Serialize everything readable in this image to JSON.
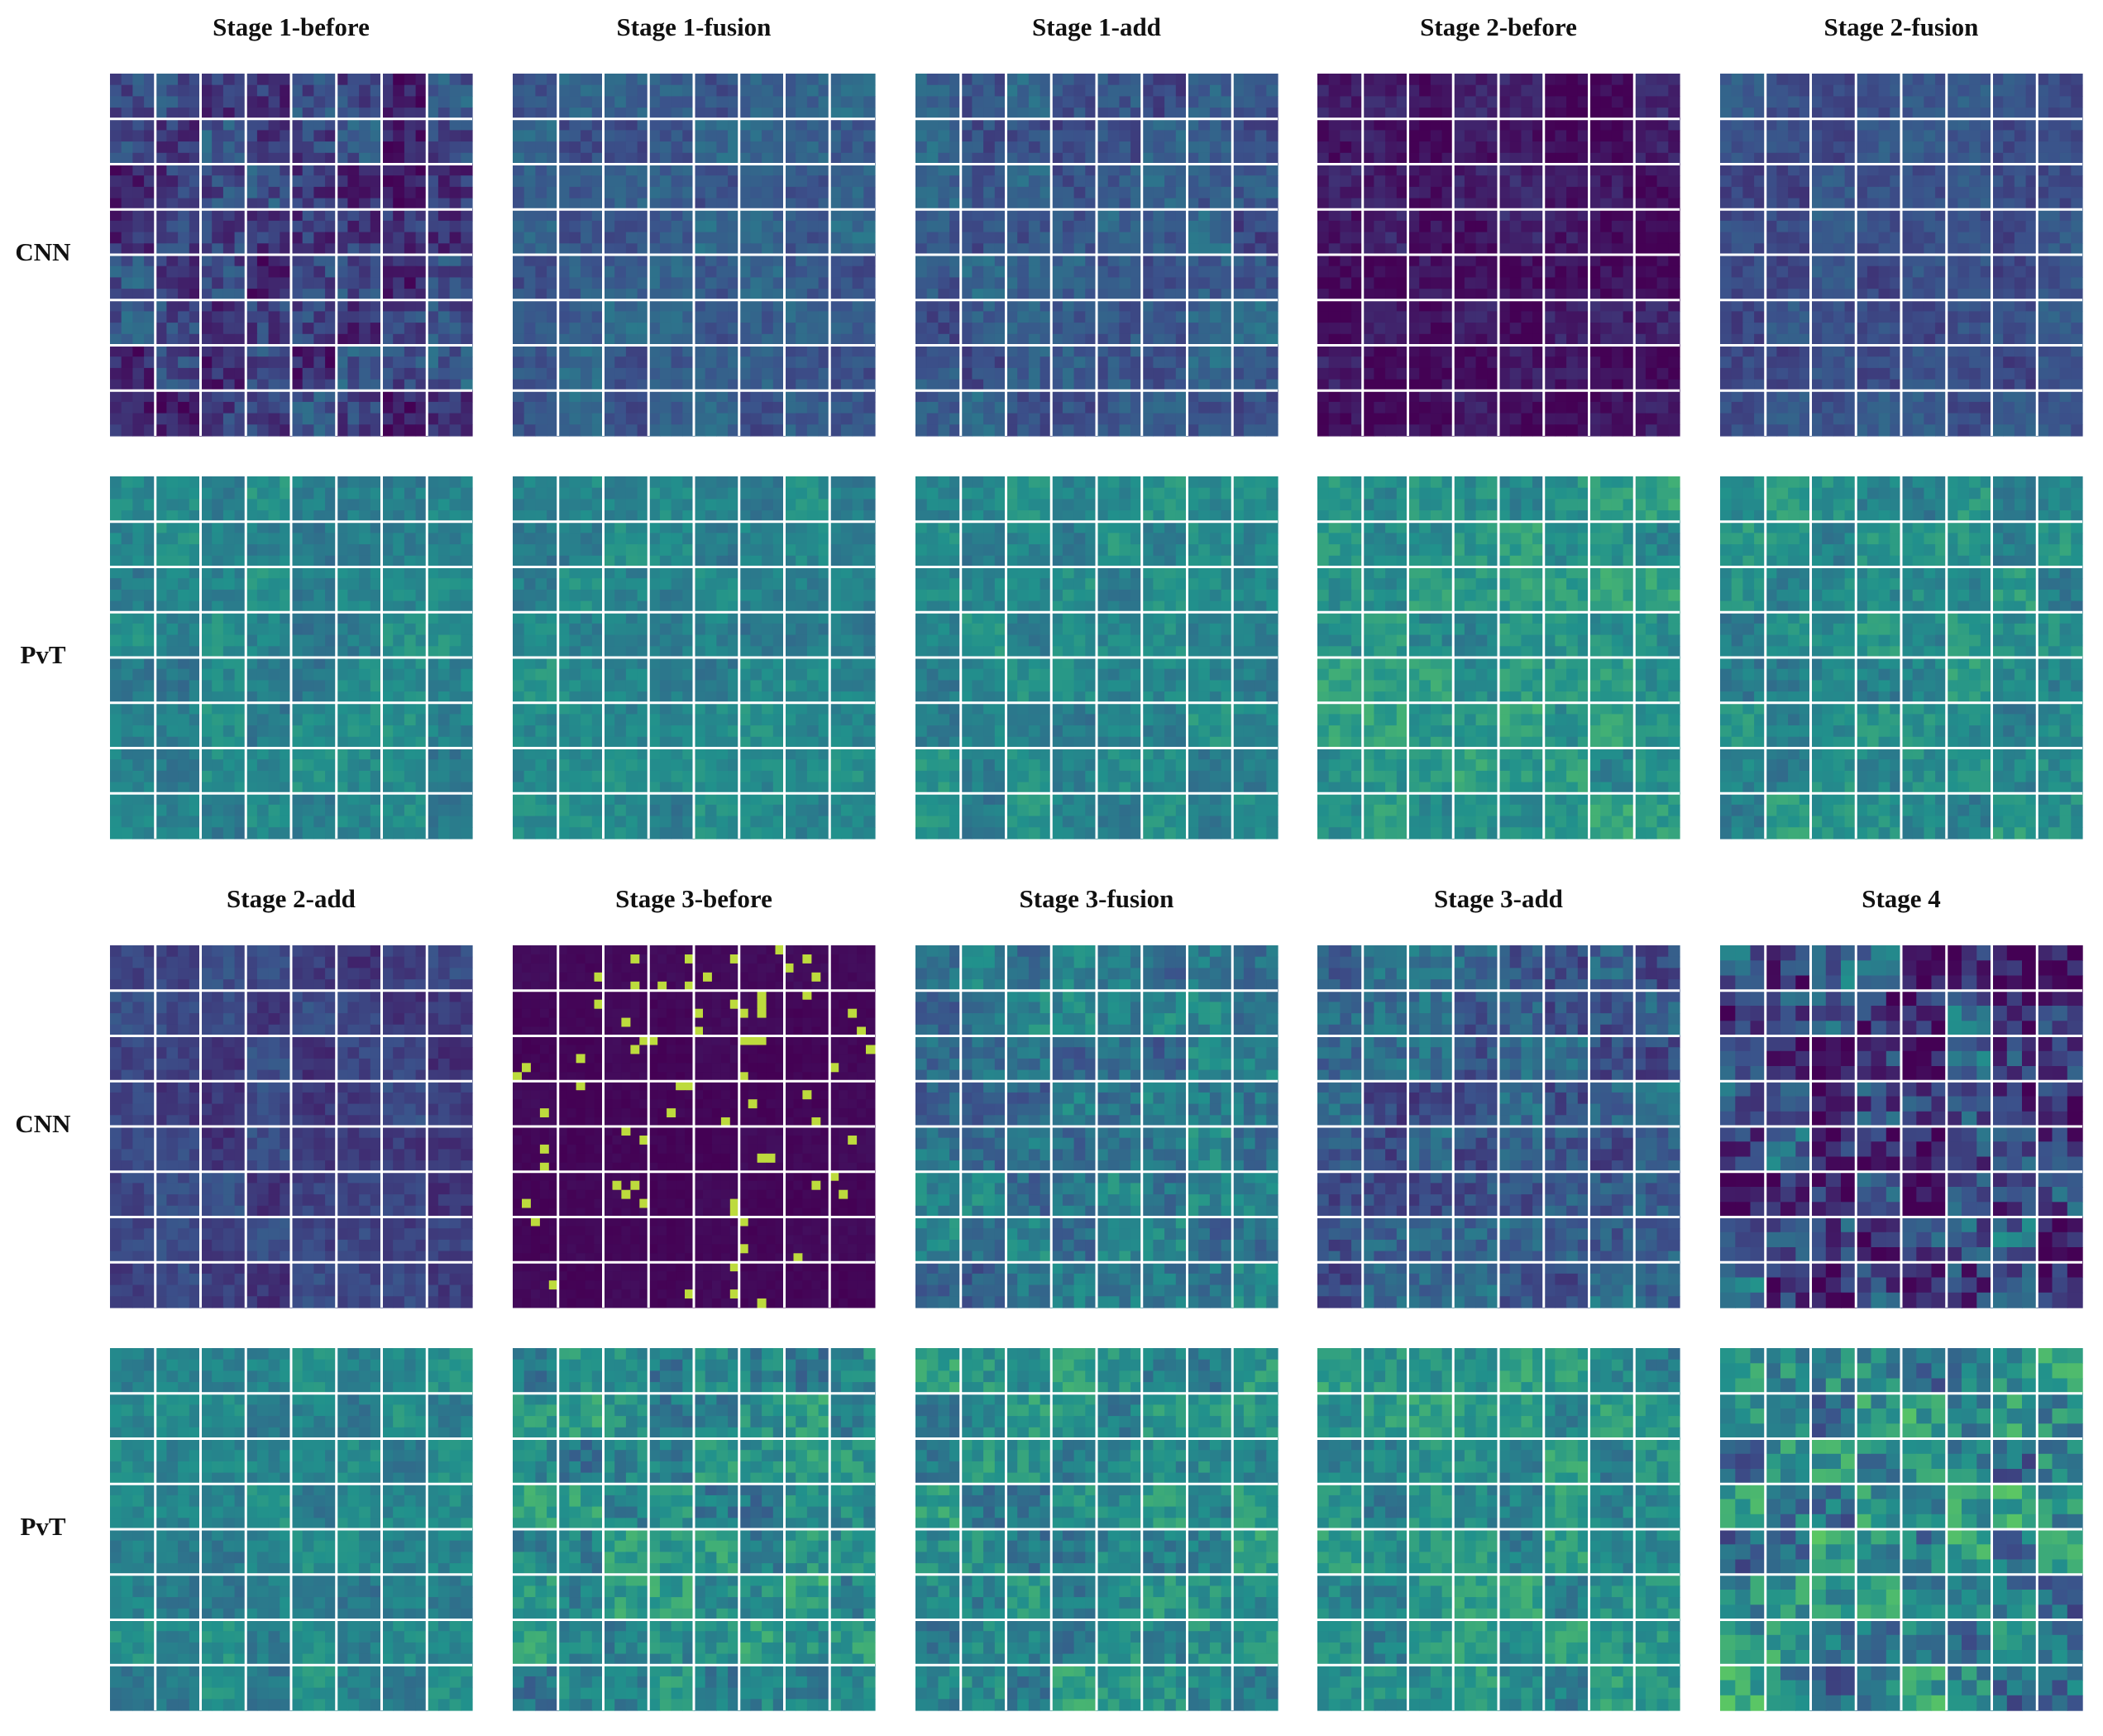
{
  "blocks": [
    {
      "titles": [
        "Stage 1-before",
        "Stage 1-fusion",
        "Stage 1-add",
        "Stage 2-before",
        "Stage 2-fusion"
      ],
      "rows": [
        "CNN",
        "PvT"
      ]
    },
    {
      "titles": [
        "Stage 2-add",
        "Stage 3-before",
        "Stage 3-fusion",
        "Stage 3-add",
        "Stage 4"
      ],
      "rows": [
        "CNN",
        "PvT"
      ]
    }
  ]
}
